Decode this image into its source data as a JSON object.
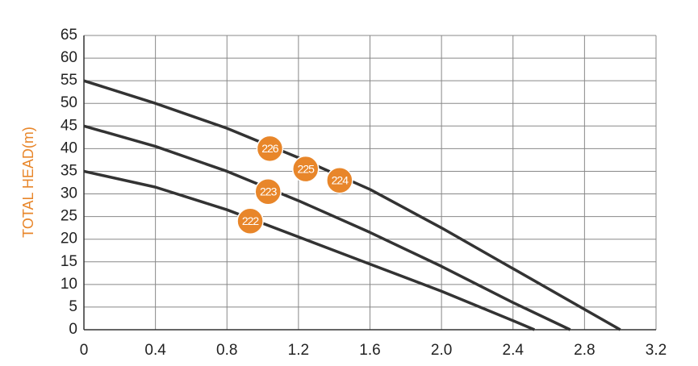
{
  "chart_data": {
    "type": "line",
    "y_label": "TOTAL HEAD(m)",
    "xlim": [
      0,
      3.2
    ],
    "ylim": [
      0,
      65
    ],
    "xticks": [
      0,
      0.4,
      0.8,
      1.2,
      1.6,
      {
        "value": 2,
        "label": "2.0"
      },
      2.4,
      2.8,
      3.2
    ],
    "yticks": [
      0,
      5,
      10,
      15,
      20,
      25,
      30,
      35,
      40,
      45,
      50,
      55,
      60,
      65
    ],
    "grid": true,
    "series": [
      {
        "color": "#333333",
        "x": [
          0,
          0.4,
          0.8,
          1.2,
          1.6,
          2.0,
          2.4,
          2.8,
          3.0
        ],
        "values": [
          55,
          50,
          44.5,
          38,
          31,
          22.5,
          13.5,
          4.5,
          0
        ]
      },
      {
        "color": "#333333",
        "x": [
          0,
          0.4,
          0.8,
          1.2,
          1.6,
          2.0,
          2.4,
          2.72
        ],
        "values": [
          45,
          40.5,
          35,
          28.5,
          21.5,
          14,
          6,
          0
        ]
      },
      {
        "color": "#333333",
        "x": [
          0,
          0.4,
          0.8,
          1.2,
          1.6,
          2.0,
          2.4,
          2.52
        ],
        "values": [
          35,
          31.5,
          26.5,
          20.5,
          14.5,
          8.5,
          2,
          0
        ]
      }
    ],
    "annotations": [
      {
        "text": "226",
        "x": 1.04,
        "y": 40,
        "color": "#e8862a"
      },
      {
        "text": "225",
        "x": 1.24,
        "y": 35.5,
        "color": "#e8862a"
      },
      {
        "text": "224",
        "x": 1.43,
        "y": 33,
        "color": "#e8862a"
      },
      {
        "text": "223",
        "x": 1.03,
        "y": 30.5,
        "color": "#e8862a"
      },
      {
        "text": "222",
        "x": 0.93,
        "y": 24,
        "color": "#e8862a"
      }
    ]
  }
}
